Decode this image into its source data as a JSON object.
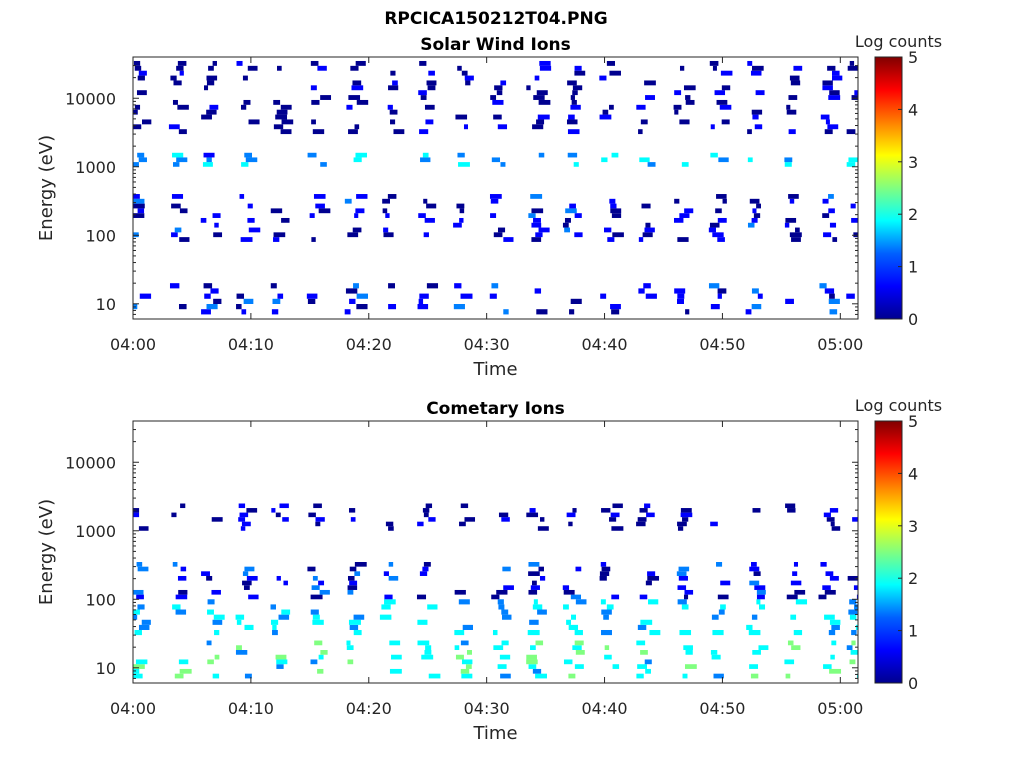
{
  "figure_title": "RPCICA150212T04.PNG",
  "colors": {
    "colormap": [
      "#00008f",
      "#0000ff",
      "#0080ff",
      "#00ffff",
      "#80ff80",
      "#ffff00",
      "#ff8000",
      "#ff0000",
      "#800000"
    ],
    "axis": "#262626",
    "background": "#ffffff"
  },
  "chart_data": [
    {
      "type": "heatmap",
      "title": "Solar Wind Ions",
      "xlabel": "Time",
      "ylabel": "Energy (eV)",
      "x_ticks": [
        "04:00",
        "04:10",
        "04:20",
        "04:30",
        "04:40",
        "04:50",
        "05:00"
      ],
      "x_range_minutes": [
        0,
        61.5
      ],
      "y_scale": "log",
      "y_range": [
        6,
        40000
      ],
      "y_ticks": [
        {
          "value": 10,
          "label": "10"
        },
        {
          "value": 100,
          "label": "100"
        },
        {
          "value": 1000,
          "label": "1000"
        },
        {
          "value": 10000,
          "label": "10000"
        }
      ],
      "colorbar": {
        "label": "Log counts",
        "range": [
          0,
          5
        ],
        "ticks": [
          "0",
          "1",
          "2",
          "3",
          "4",
          "5"
        ]
      },
      "scan_times_minutes": [
        0,
        3.4,
        6.1,
        9.0,
        12.0,
        15.1,
        18.2,
        21.3,
        24.4,
        27.5,
        30.6,
        33.7,
        36.8,
        39.9,
        43.0,
        46.1,
        49.2,
        52.3,
        55.4,
        58.5,
        60.8
      ],
      "bands": [
        {
          "e_min": 7,
          "e_max": 20,
          "level": 0.6
        },
        {
          "e_min": 80,
          "e_max": 400,
          "level": 0.4
        },
        {
          "e_min": 1000,
          "e_max": 1600,
          "level": 1.4
        },
        {
          "e_min": 3000,
          "e_max": 35000,
          "level": 0.1
        }
      ]
    },
    {
      "type": "heatmap",
      "title": "Cometary Ions",
      "xlabel": "Time",
      "ylabel": "Energy (eV)",
      "x_ticks": [
        "04:00",
        "04:10",
        "04:20",
        "04:30",
        "04:40",
        "04:50",
        "05:00"
      ],
      "x_range_minutes": [
        0,
        61.5
      ],
      "y_scale": "log",
      "y_range": [
        6,
        40000
      ],
      "y_ticks": [
        {
          "value": 10,
          "label": "10"
        },
        {
          "value": 100,
          "label": "100"
        },
        {
          "value": 1000,
          "label": "1000"
        },
        {
          "value": 10000,
          "label": "10000"
        }
      ],
      "colorbar": {
        "label": "Log counts",
        "range": [
          0,
          5
        ],
        "ticks": [
          "0",
          "1",
          "2",
          "3",
          "4",
          "5"
        ]
      },
      "scan_times_minutes": [
        0,
        3.4,
        6.1,
        9.0,
        12.0,
        15.1,
        18.2,
        21.3,
        24.4,
        27.5,
        30.6,
        33.7,
        36.8,
        39.9,
        43.0,
        46.1,
        49.2,
        52.3,
        55.4,
        58.5,
        60.8
      ],
      "bands": [
        {
          "e_min": 7,
          "e_max": 25,
          "level": 2.0
        },
        {
          "e_min": 30,
          "e_max": 100,
          "level": 1.6
        },
        {
          "e_min": 100,
          "e_max": 350,
          "level": 0.6
        },
        {
          "e_min": 1000,
          "e_max": 2500,
          "level": 0.1
        }
      ]
    }
  ]
}
